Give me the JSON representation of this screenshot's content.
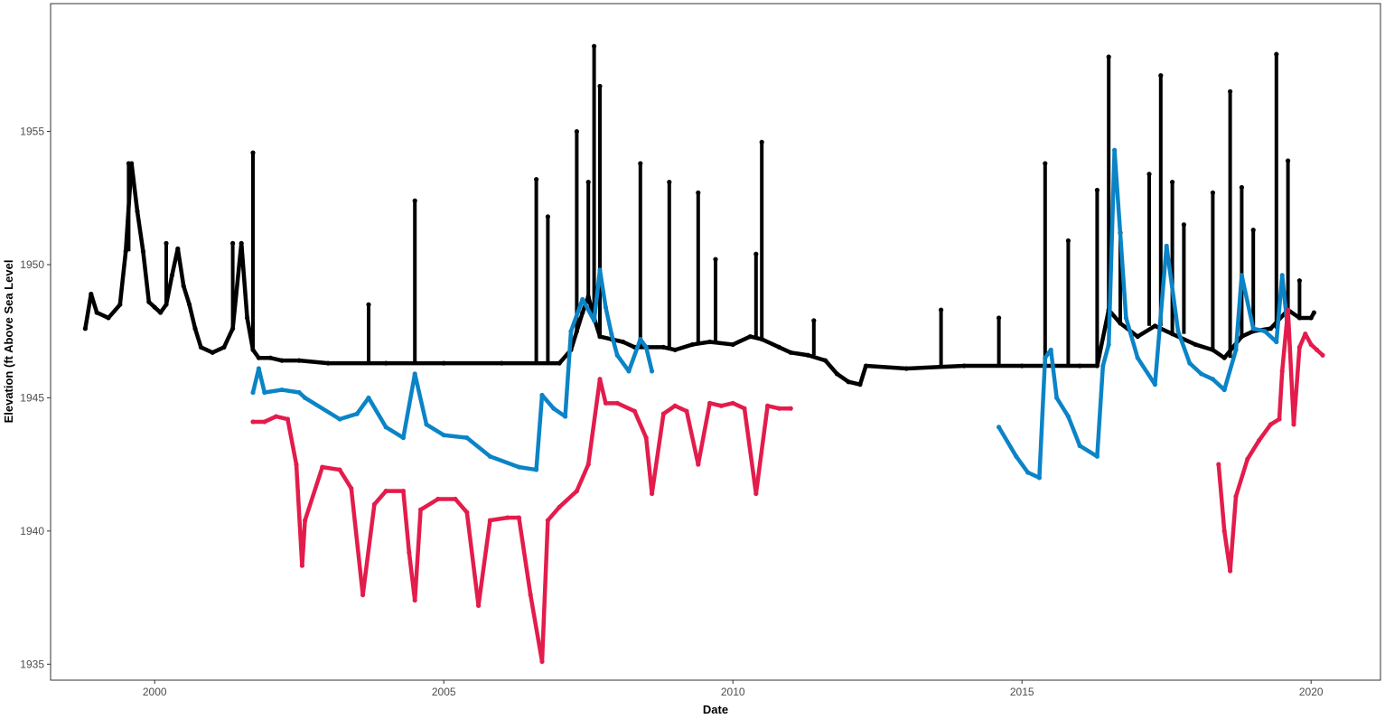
{
  "chart_data": {
    "type": "scatter",
    "title": "",
    "xlabel": "Date",
    "ylabel": "Elevation (ft Above Sea Level",
    "xlim": [
      1998.2,
      2021.2
    ],
    "ylim": [
      1934.4,
      1959.8
    ],
    "x_ticks": [
      2000,
      2005,
      2010,
      2015,
      2020
    ],
    "x_tick_labels": [
      "2000",
      "2005",
      "2010",
      "2015",
      "2020"
    ],
    "y_ticks": [
      1935,
      1940,
      1945,
      1950,
      1955
    ],
    "y_tick_labels": [
      "1935",
      "1940",
      "1945",
      "1950",
      "1955"
    ],
    "grid": false,
    "legend": "none",
    "series": [
      {
        "color": "#000000",
        "points": [
          [
            1998.8,
            1947.6
          ],
          [
            1998.9,
            1948.9
          ],
          [
            1999.0,
            1948.2
          ],
          [
            1999.2,
            1948.0
          ],
          [
            1999.4,
            1948.5
          ],
          [
            1999.5,
            1950.5
          ],
          [
            1999.6,
            1953.8
          ],
          [
            1999.7,
            1952.0
          ],
          [
            1999.8,
            1950.5
          ],
          [
            1999.9,
            1948.6
          ],
          [
            2000.0,
            1948.4
          ],
          [
            2000.1,
            1948.2
          ],
          [
            2000.2,
            1948.5
          ],
          [
            2000.3,
            1949.6
          ],
          [
            2000.4,
            1950.6
          ],
          [
            2000.5,
            1949.2
          ],
          [
            2000.6,
            1948.5
          ],
          [
            2000.7,
            1947.6
          ],
          [
            2000.8,
            1946.9
          ],
          [
            2001.0,
            1946.7
          ],
          [
            2001.2,
            1946.9
          ],
          [
            2001.35,
            1947.6
          ],
          [
            2001.5,
            1950.8
          ],
          [
            2001.6,
            1948.0
          ],
          [
            2001.7,
            1946.8
          ],
          [
            2001.8,
            1946.5
          ],
          [
            2002.0,
            1946.5
          ],
          [
            2002.2,
            1946.4
          ],
          [
            2002.5,
            1946.4
          ],
          [
            2003.0,
            1946.3
          ],
          [
            2004.0,
            1946.3
          ],
          [
            2005.0,
            1946.3
          ],
          [
            2006.0,
            1946.3
          ],
          [
            2007.0,
            1946.3
          ],
          [
            2007.2,
            1946.8
          ],
          [
            2007.3,
            1947.5
          ],
          [
            2007.4,
            1948.2
          ],
          [
            2007.5,
            1948.8
          ],
          [
            2007.6,
            1948.0
          ],
          [
            2007.7,
            1947.3
          ],
          [
            2007.9,
            1947.2
          ],
          [
            2008.1,
            1947.1
          ],
          [
            2008.3,
            1946.9
          ],
          [
            2008.5,
            1946.9
          ],
          [
            2008.8,
            1946.9
          ],
          [
            2009.0,
            1946.8
          ],
          [
            2009.3,
            1947.0
          ],
          [
            2009.6,
            1947.1
          ],
          [
            2010.0,
            1947.0
          ],
          [
            2010.3,
            1947.3
          ],
          [
            2010.5,
            1947.2
          ],
          [
            2010.8,
            1946.9
          ],
          [
            2011.0,
            1946.7
          ],
          [
            2011.3,
            1946.6
          ],
          [
            2011.6,
            1946.4
          ],
          [
            2011.8,
            1945.9
          ],
          [
            2012.0,
            1945.6
          ],
          [
            2012.2,
            1945.5
          ],
          [
            2012.3,
            1946.2
          ],
          [
            2013.0,
            1946.1
          ],
          [
            2014.0,
            1946.2
          ],
          [
            2015.0,
            1946.2
          ],
          [
            2016.0,
            1946.2
          ],
          [
            2016.3,
            1946.2
          ],
          [
            2016.5,
            1948.3
          ],
          [
            2016.7,
            1947.8
          ],
          [
            2017.0,
            1947.3
          ],
          [
            2017.3,
            1947.7
          ],
          [
            2017.6,
            1947.4
          ],
          [
            2018.0,
            1947.0
          ],
          [
            2018.3,
            1946.8
          ],
          [
            2018.5,
            1946.5
          ],
          [
            2018.8,
            1947.3
          ],
          [
            2019.0,
            1947.5
          ],
          [
            2019.3,
            1947.6
          ],
          [
            2019.6,
            1948.3
          ],
          [
            2019.8,
            1948.0
          ],
          [
            2020.0,
            1948.0
          ],
          [
            2020.05,
            1948.2
          ]
        ],
        "spikes": [
          [
            1999.55,
            1953.8
          ],
          [
            2000.2,
            1950.8
          ],
          [
            2001.35,
            1950.8
          ],
          [
            2001.7,
            1954.2
          ],
          [
            2003.7,
            1948.5
          ],
          [
            2004.5,
            1952.4
          ],
          [
            2006.6,
            1953.2
          ],
          [
            2006.8,
            1951.8
          ],
          [
            2007.3,
            1955.0
          ],
          [
            2007.5,
            1953.1
          ],
          [
            2007.6,
            1958.2
          ],
          [
            2007.7,
            1956.7
          ],
          [
            2008.4,
            1953.8
          ],
          [
            2008.9,
            1953.1
          ],
          [
            2009.4,
            1952.7
          ],
          [
            2009.7,
            1950.2
          ],
          [
            2010.4,
            1950.4
          ],
          [
            2010.5,
            1954.6
          ],
          [
            2011.4,
            1947.9
          ],
          [
            2013.6,
            1948.3
          ],
          [
            2014.6,
            1948.0
          ],
          [
            2015.4,
            1953.8
          ],
          [
            2015.8,
            1950.9
          ],
          [
            2016.3,
            1952.8
          ],
          [
            2016.5,
            1957.8
          ],
          [
            2016.7,
            1951.2
          ],
          [
            2017.2,
            1953.4
          ],
          [
            2017.4,
            1957.1
          ],
          [
            2017.6,
            1953.1
          ],
          [
            2017.8,
            1951.5
          ],
          [
            2018.3,
            1952.7
          ],
          [
            2018.6,
            1956.5
          ],
          [
            2018.8,
            1952.9
          ],
          [
            2019.0,
            1951.3
          ],
          [
            2019.4,
            1957.9
          ],
          [
            2019.6,
            1953.9
          ],
          [
            2019.8,
            1949.4
          ]
        ]
      },
      {
        "color": "#0b84c7",
        "points": [
          [
            2001.7,
            1945.2
          ],
          [
            2001.8,
            1946.1
          ],
          [
            2001.9,
            1945.2
          ],
          [
            2002.2,
            1945.3
          ],
          [
            2002.5,
            1945.2
          ],
          [
            2002.6,
            1945.0
          ],
          [
            2003.2,
            1944.2
          ],
          [
            2003.5,
            1944.4
          ],
          [
            2003.7,
            1945.0
          ],
          [
            2004.0,
            1943.9
          ],
          [
            2004.3,
            1943.5
          ],
          [
            2004.5,
            1945.9
          ],
          [
            2004.7,
            1944.0
          ],
          [
            2005.0,
            1943.6
          ],
          [
            2005.4,
            1943.5
          ],
          [
            2005.8,
            1942.8
          ],
          [
            2006.3,
            1942.4
          ],
          [
            2006.6,
            1942.3
          ],
          [
            2006.7,
            1945.1
          ],
          [
            2006.9,
            1944.6
          ],
          [
            2007.1,
            1944.3
          ],
          [
            2007.2,
            1947.5
          ],
          [
            2007.4,
            1948.7
          ],
          [
            2007.6,
            1947.9
          ],
          [
            2007.7,
            1949.8
          ],
          [
            2007.8,
            1948.4
          ],
          [
            2007.9,
            1947.4
          ],
          [
            2008.0,
            1946.6
          ],
          [
            2008.2,
            1946.0
          ],
          [
            2008.4,
            1947.2
          ],
          [
            2008.5,
            1946.9
          ],
          [
            2008.6,
            1946.0
          ]
        ],
        "points_late": [
          [
            2014.6,
            1943.9
          ],
          [
            2014.9,
            1942.8
          ],
          [
            2015.1,
            1942.2
          ],
          [
            2015.3,
            1942.0
          ],
          [
            2015.4,
            1946.5
          ],
          [
            2015.5,
            1946.8
          ],
          [
            2015.6,
            1945.0
          ],
          [
            2015.8,
            1944.3
          ],
          [
            2016.0,
            1943.2
          ],
          [
            2016.3,
            1942.8
          ],
          [
            2016.4,
            1946.2
          ],
          [
            2016.5,
            1947.0
          ],
          [
            2016.6,
            1954.3
          ],
          [
            2016.8,
            1948.0
          ],
          [
            2017.0,
            1946.5
          ],
          [
            2017.3,
            1945.5
          ],
          [
            2017.5,
            1950.7
          ],
          [
            2017.7,
            1947.5
          ],
          [
            2017.9,
            1946.3
          ],
          [
            2018.1,
            1945.9
          ],
          [
            2018.3,
            1945.7
          ],
          [
            2018.5,
            1945.3
          ],
          [
            2018.7,
            1946.8
          ],
          [
            2018.8,
            1949.6
          ],
          [
            2019.0,
            1947.6
          ],
          [
            2019.2,
            1947.5
          ],
          [
            2019.4,
            1947.1
          ],
          [
            2019.5,
            1949.6
          ],
          [
            2019.6,
            1947.5
          ]
        ]
      },
      {
        "color": "#e31c4c",
        "points": [
          [
            2001.7,
            1944.1
          ],
          [
            2001.9,
            1944.1
          ],
          [
            2002.1,
            1944.3
          ],
          [
            2002.3,
            1944.2
          ],
          [
            2002.45,
            1942.5
          ],
          [
            2002.55,
            1938.7
          ],
          [
            2002.6,
            1940.4
          ],
          [
            2002.9,
            1942.4
          ],
          [
            2003.2,
            1942.3
          ],
          [
            2003.4,
            1941.6
          ],
          [
            2003.6,
            1937.6
          ],
          [
            2003.8,
            1941.0
          ],
          [
            2004.0,
            1941.5
          ],
          [
            2004.3,
            1941.5
          ],
          [
            2004.4,
            1939.2
          ],
          [
            2004.5,
            1937.4
          ],
          [
            2004.6,
            1940.8
          ],
          [
            2004.9,
            1941.2
          ],
          [
            2005.2,
            1941.2
          ],
          [
            2005.4,
            1940.7
          ],
          [
            2005.6,
            1937.2
          ],
          [
            2005.8,
            1940.4
          ],
          [
            2006.1,
            1940.5
          ],
          [
            2006.3,
            1940.5
          ],
          [
            2006.5,
            1937.6
          ],
          [
            2006.7,
            1935.1
          ],
          [
            2006.8,
            1940.4
          ],
          [
            2007.0,
            1940.9
          ],
          [
            2007.3,
            1941.5
          ],
          [
            2007.5,
            1942.5
          ],
          [
            2007.7,
            1945.7
          ],
          [
            2007.8,
            1944.8
          ],
          [
            2008.0,
            1944.8
          ],
          [
            2008.3,
            1944.5
          ],
          [
            2008.5,
            1943.5
          ],
          [
            2008.6,
            1941.4
          ],
          [
            2008.8,
            1944.4
          ],
          [
            2009.0,
            1944.7
          ],
          [
            2009.2,
            1944.5
          ],
          [
            2009.4,
            1942.5
          ],
          [
            2009.6,
            1944.8
          ],
          [
            2009.8,
            1944.7
          ],
          [
            2010.0,
            1944.8
          ],
          [
            2010.2,
            1944.6
          ],
          [
            2010.4,
            1941.4
          ],
          [
            2010.6,
            1944.7
          ],
          [
            2010.8,
            1944.6
          ],
          [
            2011.0,
            1944.6
          ]
        ],
        "points_late": [
          [
            2018.4,
            1942.5
          ],
          [
            2018.5,
            1940.0
          ],
          [
            2018.6,
            1938.5
          ],
          [
            2018.7,
            1941.3
          ],
          [
            2018.9,
            1942.7
          ],
          [
            2019.1,
            1943.4
          ],
          [
            2019.3,
            1944.0
          ],
          [
            2019.45,
            1944.2
          ],
          [
            2019.5,
            1946.0
          ],
          [
            2019.6,
            1948.3
          ],
          [
            2019.7,
            1944.0
          ],
          [
            2019.8,
            1946.9
          ],
          [
            2019.9,
            1947.4
          ],
          [
            2020.0,
            1947.0
          ],
          [
            2020.1,
            1946.8
          ],
          [
            2020.2,
            1946.6
          ]
        ]
      }
    ]
  }
}
